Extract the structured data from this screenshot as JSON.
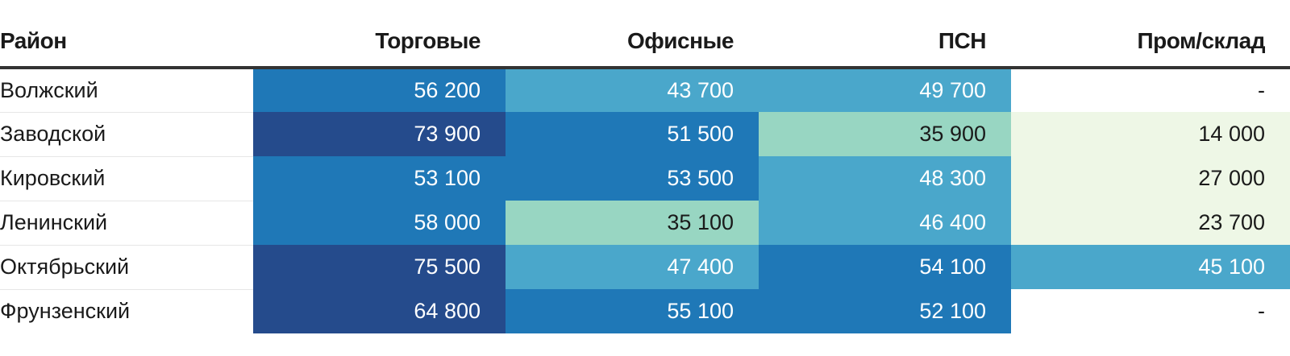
{
  "chart_data": {
    "type": "heatmap",
    "columns": [
      "Район",
      "Торговые",
      "Офисные",
      "ПСН",
      "Пром/склад"
    ],
    "rows": [
      {
        "district": "Волжский",
        "cells": [
          "56 200",
          "43 700",
          "49 700",
          "-"
        ]
      },
      {
        "district": "Заводской",
        "cells": [
          "73 900",
          "51 500",
          "35 900",
          "14 000"
        ]
      },
      {
        "district": "Кировский",
        "cells": [
          "53 100",
          "53 500",
          "48 300",
          "27 000"
        ]
      },
      {
        "district": "Ленинский",
        "cells": [
          "58 000",
          "35 100",
          "46 400",
          "23 700"
        ]
      },
      {
        "district": "Октябрьский",
        "cells": [
          "75 500",
          "47 400",
          "54 100",
          "45 100"
        ]
      },
      {
        "district": "Фрунзенский",
        "cells": [
          "64 800",
          "55 100",
          "52 100",
          "-"
        ]
      }
    ],
    "color_scale": {
      "stops": [
        {
          "min": 60000,
          "color": "#254B8C",
          "text": "#ffffff"
        },
        {
          "min": 50000,
          "color": "#1F78B7",
          "text": "#ffffff"
        },
        {
          "min": 40000,
          "color": "#4AA7CB",
          "text": "#ffffff"
        },
        {
          "min": 30000,
          "color": "#98D6C2",
          "text": "#1a1a1a"
        },
        {
          "min": 20000,
          "color": "#EEF7E6",
          "text": "#1a1a1a"
        },
        {
          "min": 0,
          "color": "#EEF7E6",
          "text": "#1a1a1a"
        }
      ],
      "empty": {
        "color": "#ffffff",
        "text": "#1a1a1a"
      }
    }
  }
}
